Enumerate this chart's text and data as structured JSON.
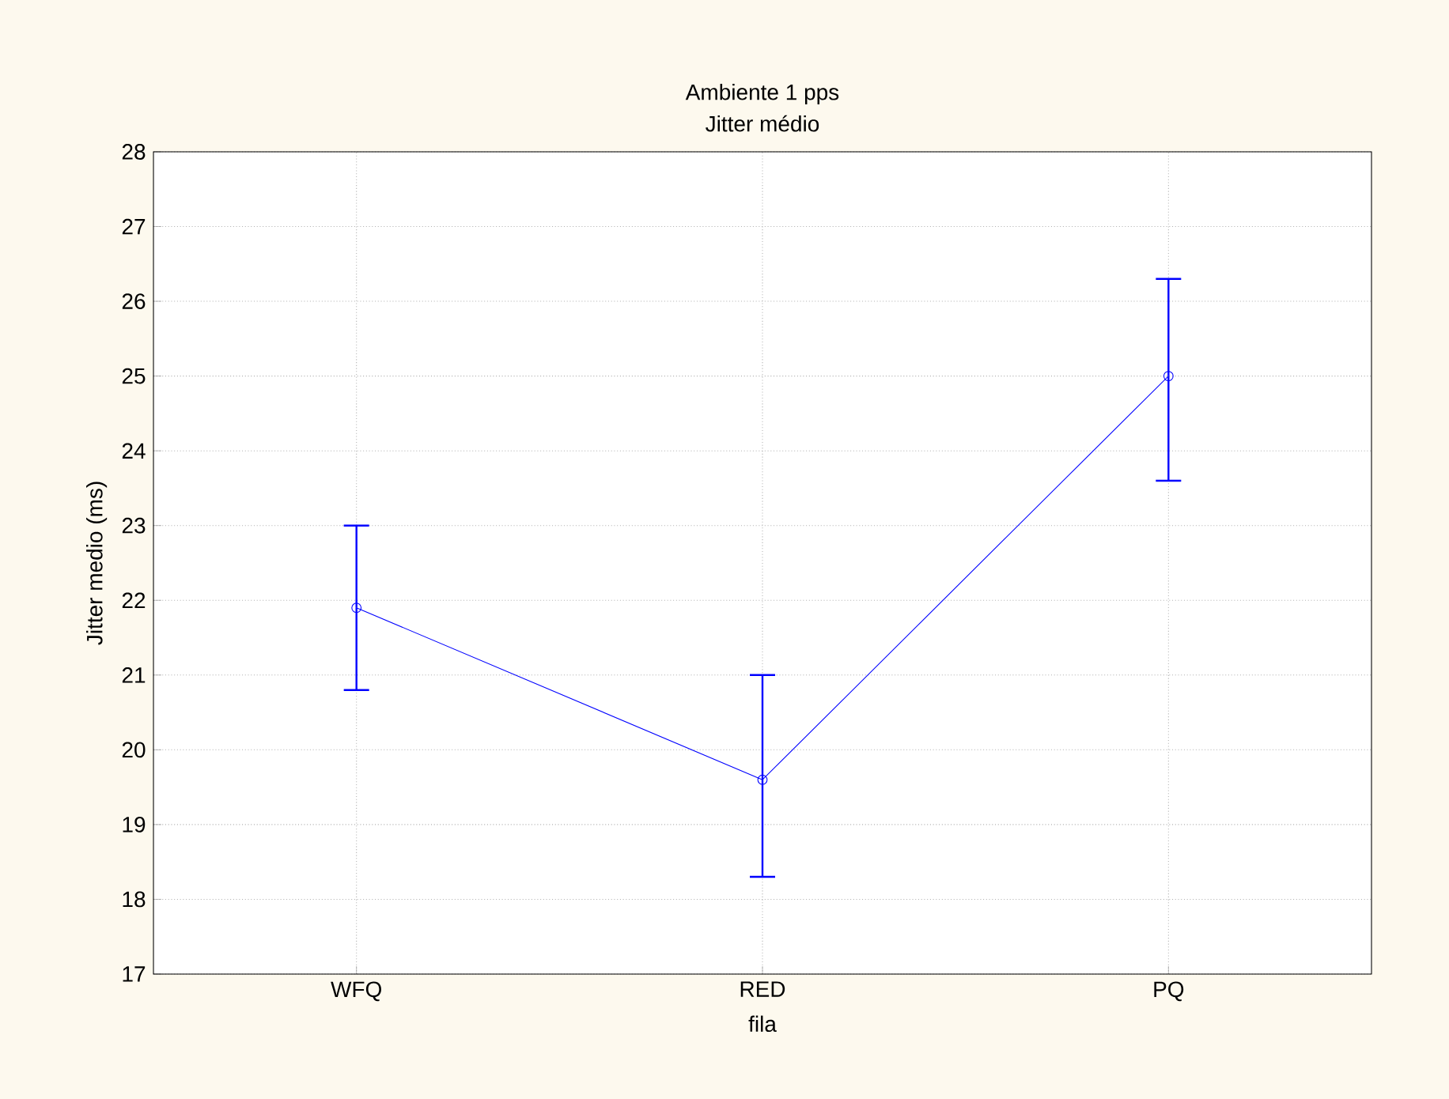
{
  "chart_data": {
    "type": "line",
    "title": "Ambiente 1 pps",
    "subtitle": "Jitter médio",
    "xlabel": "fila",
    "ylabel": "Jitter medio (ms)",
    "categories": [
      "WFQ",
      "RED",
      "PQ"
    ],
    "series": [
      {
        "color": "#0000ff",
        "values": [
          21.9,
          19.6,
          25.0
        ],
        "errors": [
          [
            20.8,
            23.0
          ],
          [
            18.3,
            21.0
          ],
          [
            23.6,
            26.3
          ]
        ]
      }
    ],
    "ylim": [
      17,
      28
    ],
    "yticks": [
      17,
      18,
      19,
      20,
      21,
      22,
      23,
      24,
      25,
      26,
      27,
      28
    ],
    "grid": true,
    "marker": "circle",
    "line_style": "solid"
  }
}
